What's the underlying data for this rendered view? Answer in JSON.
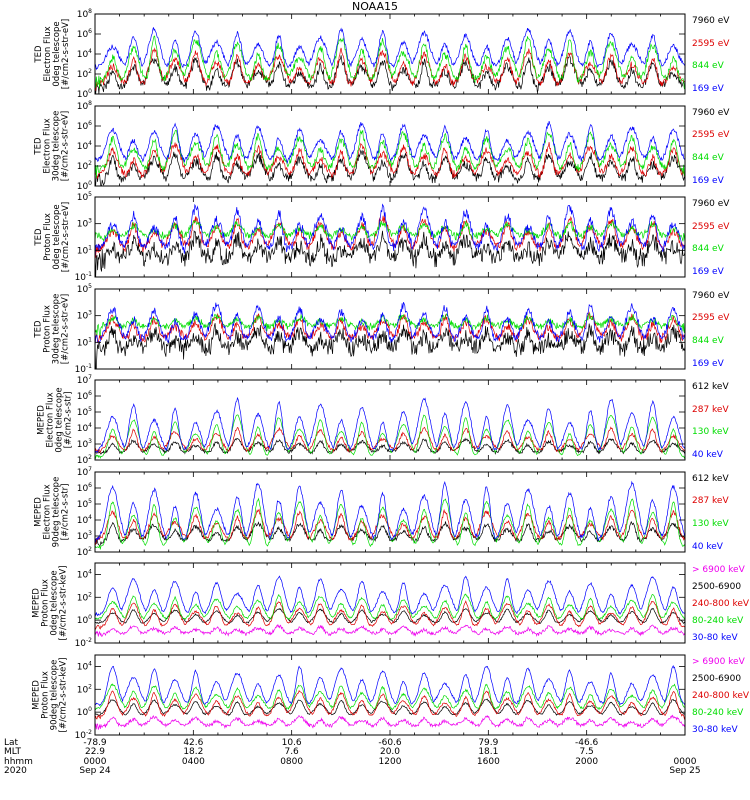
{
  "title": "NOAA15",
  "chart_data": {
    "type": "line",
    "title": "NOAA15",
    "log_scale": true,
    "panels": [
      {
        "ylabel": [
          "TED",
          "Electron Flux",
          "0deg telescope",
          "[#/cm2-s-str-eV]"
        ],
        "yticks": [
          {
            "exp": "0",
            "at": 0
          },
          {
            "exp": "2",
            "at": 2
          },
          {
            "exp": "4",
            "at": 4
          },
          {
            "exp": "6",
            "at": 6
          },
          {
            "exp": "8",
            "at": 8
          }
        ],
        "ylim_log": [
          0,
          8
        ],
        "series": [
          {
            "name": "7960 eV",
            "color": "#000000",
            "base": 0.4,
            "peak": 3.5,
            "noise": 0.9
          },
          {
            "name": "2595 eV",
            "color": "#dd0000",
            "base": 0.8,
            "peak": 4.3,
            "noise": 0.7
          },
          {
            "name": "844 eV",
            "color": "#00dd00",
            "base": 1.2,
            "peak": 5.6,
            "noise": 0.7
          },
          {
            "name": "169 eV",
            "color": "#0000ff",
            "base": 2.6,
            "peak": 6.5,
            "noise": 0.5
          }
        ]
      },
      {
        "ylabel": [
          "TED",
          "Electron Flux",
          "30deg telescope",
          "[#/cm2-s-str-eV]"
        ],
        "yticks": [
          {
            "exp": "0",
            "at": 0
          },
          {
            "exp": "2",
            "at": 2
          },
          {
            "exp": "4",
            "at": 4
          },
          {
            "exp": "6",
            "at": 6
          },
          {
            "exp": "8",
            "at": 8
          }
        ],
        "ylim_log": [
          0,
          8
        ],
        "series": [
          {
            "name": "7960 eV",
            "color": "#000000",
            "base": 0.4,
            "peak": 3.2,
            "noise": 0.9
          },
          {
            "name": "2595 eV",
            "color": "#dd0000",
            "base": 0.9,
            "peak": 4.1,
            "noise": 0.7
          },
          {
            "name": "844 eV",
            "color": "#00dd00",
            "base": 1.5,
            "peak": 5.4,
            "noise": 0.7
          },
          {
            "name": "169 eV",
            "color": "#0000ff",
            "base": 2.4,
            "peak": 6.3,
            "noise": 0.5
          }
        ]
      },
      {
        "ylabel": [
          "TED",
          "Proton Flux",
          "0deg telescope",
          "[#/cm2-s-str-eV]"
        ],
        "yticks": [
          {
            "exp": "-1",
            "at": -1
          },
          {
            "exp": "1",
            "at": 1
          },
          {
            "exp": "3",
            "at": 3
          },
          {
            "exp": "5",
            "at": 5
          }
        ],
        "ylim_log": [
          -1,
          5
        ],
        "series": [
          {
            "name": "7960 eV",
            "color": "#000000",
            "base": 0.0,
            "peak": 2.0,
            "noise": 1.2
          },
          {
            "name": "2595 eV",
            "color": "#dd0000",
            "base": 1.0,
            "peak": 3.4,
            "noise": 0.6
          },
          {
            "name": "844 eV",
            "color": "#00dd00",
            "base": 1.9,
            "peak": 3.1,
            "noise": 0.5
          },
          {
            "name": "169 eV",
            "color": "#0000ff",
            "base": 0.9,
            "peak": 4.2,
            "noise": 0.7
          }
        ]
      },
      {
        "ylabel": [
          "TED",
          "Proton Flux",
          "30deg telescope",
          "[#/cm2-s-str-eV]"
        ],
        "yticks": [
          {
            "exp": "-1",
            "at": -1
          },
          {
            "exp": "1",
            "at": 1
          },
          {
            "exp": "3",
            "at": 3
          },
          {
            "exp": "5",
            "at": 5
          }
        ],
        "ylim_log": [
          -1,
          5
        ],
        "series": [
          {
            "name": "7960 eV",
            "color": "#000000",
            "base": 0.1,
            "peak": 2.0,
            "noise": 1.2
          },
          {
            "name": "2595 eV",
            "color": "#dd0000",
            "base": 1.1,
            "peak": 3.0,
            "noise": 0.6
          },
          {
            "name": "844 eV",
            "color": "#00dd00",
            "base": 2.0,
            "peak": 3.0,
            "noise": 0.5
          },
          {
            "name": "169 eV",
            "color": "#0000ff",
            "base": 1.0,
            "peak": 3.8,
            "noise": 0.6
          }
        ]
      },
      {
        "ylabel": [
          "MEPED",
          "Electron Flux",
          "0deg telescope",
          "[#/cm2-s-str]"
        ],
        "yticks": [
          {
            "exp": "2",
            "at": 2
          },
          {
            "exp": "3",
            "at": 3
          },
          {
            "exp": "4",
            "at": 4
          },
          {
            "exp": "5",
            "at": 5
          },
          {
            "exp": "6",
            "at": 6
          },
          {
            "exp": "7",
            "at": 7
          }
        ],
        "ylim_log": [
          2,
          7
        ],
        "series": [
          {
            "name": "612 keV",
            "color": "#000000",
            "base": 2.4,
            "peak": 3.3,
            "noise": 0.2
          },
          {
            "name": "287 keV",
            "color": "#dd0000",
            "base": 2.5,
            "peak": 4.0,
            "noise": 0.2
          },
          {
            "name": "130 keV",
            "color": "#00dd00",
            "base": 2.2,
            "peak": 4.8,
            "noise": 0.1
          },
          {
            "name": "40 keV",
            "color": "#0000ff",
            "base": 2.5,
            "peak": 5.8,
            "noise": 0.2
          }
        ]
      },
      {
        "ylabel": [
          "MEPED",
          "Electron Flux",
          "90deg telescope",
          "[#/cm2-s-str]"
        ],
        "yticks": [
          {
            "exp": "2",
            "at": 2
          },
          {
            "exp": "3",
            "at": 3
          },
          {
            "exp": "4",
            "at": 4
          },
          {
            "exp": "5",
            "at": 5
          },
          {
            "exp": "6",
            "at": 6
          },
          {
            "exp": "7",
            "at": 7
          }
        ],
        "ylim_log": [
          2,
          7
        ],
        "series": [
          {
            "name": "612 keV",
            "color": "#000000",
            "base": 2.6,
            "peak": 3.8,
            "noise": 0.25
          },
          {
            "name": "287 keV",
            "color": "#dd0000",
            "base": 2.7,
            "peak": 4.6,
            "noise": 0.25
          },
          {
            "name": "130 keV",
            "color": "#00dd00",
            "base": 2.3,
            "peak": 5.3,
            "noise": 0.15
          },
          {
            "name": "40 keV",
            "color": "#0000ff",
            "base": 2.7,
            "peak": 6.3,
            "noise": 0.25
          }
        ]
      },
      {
        "ylabel": [
          "MEPED",
          "Proton Flux",
          "0deg telescope",
          "[#/cm2-s-str-keV]"
        ],
        "yticks": [
          {
            "exp": "-2",
            "at": -2
          },
          {
            "exp": "0",
            "at": 0
          },
          {
            "exp": "2",
            "at": 2
          },
          {
            "exp": "4",
            "at": 4
          }
        ],
        "ylim_log": [
          -2,
          5
        ],
        "series": [
          {
            "name": "> 6900 keV",
            "color": "#ee00ee",
            "base": -1.3,
            "peak": -0.5,
            "noise": 0.3
          },
          {
            "name": "2500-6900",
            "color": "#000000",
            "base": -0.3,
            "peak": 1.0,
            "noise": 0.15
          },
          {
            "name": "240-800 keV",
            "color": "#dd0000",
            "base": -0.6,
            "peak": 1.6,
            "noise": 0.2
          },
          {
            "name": "80-240 keV",
            "color": "#00dd00",
            "base": 0.0,
            "peak": 2.2,
            "noise": 0.2
          },
          {
            "name": "30-80 keV",
            "color": "#0000ff",
            "base": 0.5,
            "peak": 3.8,
            "noise": 0.2
          }
        ]
      },
      {
        "ylabel": [
          "MEPED",
          "Proton Flux",
          "90deg telescope",
          "[#/cm2-s-str-keV]"
        ],
        "yticks": [
          {
            "exp": "-2",
            "at": -2
          },
          {
            "exp": "0",
            "at": 0
          },
          {
            "exp": "2",
            "at": 2
          },
          {
            "exp": "4",
            "at": 4
          }
        ],
        "ylim_log": [
          -2,
          5
        ],
        "series": [
          {
            "name": "> 6900 keV",
            "color": "#ee00ee",
            "base": -1.3,
            "peak": -0.4,
            "noise": 0.3
          },
          {
            "name": "2500-6900",
            "color": "#000000",
            "base": -0.3,
            "peak": 1.1,
            "noise": 0.15
          },
          {
            "name": "240-800 keV",
            "color": "#dd0000",
            "base": -0.4,
            "peak": 1.8,
            "noise": 0.2
          },
          {
            "name": "80-240 keV",
            "color": "#00dd00",
            "base": 0.2,
            "peak": 2.4,
            "noise": 0.2
          },
          {
            "name": "30-80 keV",
            "color": "#0000ff",
            "base": 0.6,
            "peak": 4.0,
            "noise": 0.2
          }
        ]
      }
    ],
    "x_axis": {
      "row_labels": [
        "Lat",
        "MLT",
        "hhmm",
        "2020"
      ],
      "ticks": [
        {
          "frac": 0.0,
          "lat": "-78.9",
          "mlt": "22.9",
          "hhmm": "0000",
          "date": "Sep 24"
        },
        {
          "frac": 0.1667,
          "lat": "42.6",
          "mlt": "18.2",
          "hhmm": "0400",
          "date": ""
        },
        {
          "frac": 0.3333,
          "lat": "10.6",
          "mlt": "7.6",
          "hhmm": "0800",
          "date": ""
        },
        {
          "frac": 0.5,
          "lat": "-60.6",
          "mlt": "20.0",
          "hhmm": "1200",
          "date": ""
        },
        {
          "frac": 0.6667,
          "lat": "79.9",
          "mlt": "18.1",
          "hhmm": "1600",
          "date": ""
        },
        {
          "frac": 0.8333,
          "lat": "-46.6",
          "mlt": "7.5",
          "hhmm": "2000",
          "date": ""
        },
        {
          "frac": 1.0,
          "lat": "",
          "mlt": "",
          "hhmm": "0000",
          "date": "Sep 25"
        }
      ]
    }
  }
}
